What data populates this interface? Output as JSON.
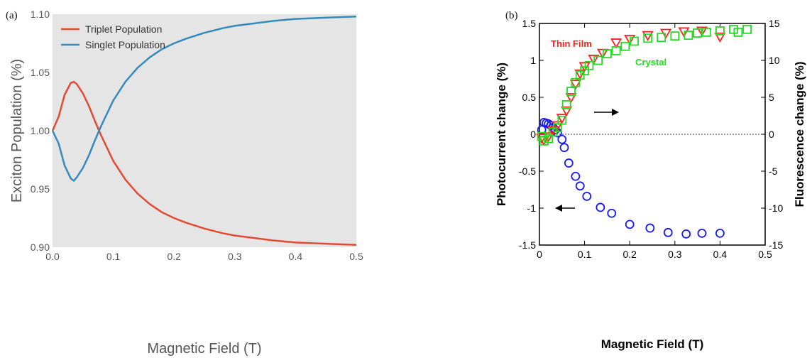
{
  "chart_data": [
    {
      "panel_label": "(a)",
      "type": "line",
      "xlabel": "Magnetic Field (T)",
      "ylabel": "Exciton Population (%)",
      "xlim": [
        0,
        0.5
      ],
      "ylim": [
        0.9,
        1.1
      ],
      "xticks": [
        "0.0",
        "0.1",
        "0.2",
        "0.3",
        "0.4",
        "0.5"
      ],
      "yticks": [
        "0.90",
        "0.95",
        "1.00",
        "1.05",
        "1.10"
      ],
      "grid": false,
      "background": "#e5e5e5",
      "legend_position": "top-left",
      "series": [
        {
          "name": "Triplet Population",
          "color": "#e24a33",
          "x": [
            0,
            0.01,
            0.02,
            0.03,
            0.035,
            0.04,
            0.05,
            0.06,
            0.07,
            0.08,
            0.09,
            0.1,
            0.12,
            0.14,
            0.16,
            0.18,
            0.2,
            0.22,
            0.25,
            0.28,
            0.3,
            0.33,
            0.36,
            0.4,
            0.45,
            0.5
          ],
          "y": [
            1.0,
            1.012,
            1.031,
            1.041,
            1.042,
            1.04,
            1.032,
            1.021,
            1.008,
            0.996,
            0.985,
            0.974,
            0.958,
            0.946,
            0.937,
            0.93,
            0.925,
            0.921,
            0.916,
            0.912,
            0.91,
            0.908,
            0.906,
            0.904,
            0.903,
            0.902
          ]
        },
        {
          "name": "Singlet Population",
          "color": "#348abd",
          "x": [
            0,
            0.01,
            0.02,
            0.03,
            0.035,
            0.04,
            0.05,
            0.06,
            0.07,
            0.08,
            0.09,
            0.1,
            0.12,
            0.14,
            0.16,
            0.18,
            0.2,
            0.22,
            0.25,
            0.28,
            0.3,
            0.33,
            0.36,
            0.4,
            0.45,
            0.5
          ],
          "y": [
            1.0,
            0.989,
            0.97,
            0.959,
            0.957,
            0.96,
            0.968,
            0.979,
            0.992,
            1.004,
            1.015,
            1.026,
            1.042,
            1.054,
            1.063,
            1.07,
            1.075,
            1.079,
            1.084,
            1.088,
            1.09,
            1.092,
            1.094,
            1.096,
            1.097,
            1.098
          ]
        }
      ]
    },
    {
      "panel_label": "(b)",
      "type": "scatter",
      "xlabel": "Magnetic Field (T)",
      "ylabel_left": "Photocurrent change (%)",
      "ylabel_right": "Fluorescence change (%)",
      "xlim": [
        0,
        0.5
      ],
      "ylim_left": [
        -1.5,
        1.5
      ],
      "ylim_right": [
        -15,
        15
      ],
      "xticks": [
        "0",
        "0.1",
        "0.2",
        "0.3",
        "0.4",
        "0.5"
      ],
      "yticks_left": [
        "-1.5",
        "-1",
        "-0.5",
        "0",
        "0.5",
        "1",
        "1.5"
      ],
      "yticks_right": [
        "-15",
        "-10",
        "-5",
        "0",
        "5",
        "10",
        "15"
      ],
      "zero_line": "dashed",
      "annotations": [
        {
          "text": "Thin Film",
          "color": "#ff2020"
        },
        {
          "text": "Crystal",
          "color": "#22dd22"
        }
      ],
      "arrows": [
        {
          "points_to": "right axis"
        },
        {
          "points_to": "left axis"
        }
      ],
      "series": [
        {
          "name": "Photocurrent",
          "axis": "left",
          "marker": "circle",
          "color": "#1a1aee",
          "x": [
            0.005,
            0.01,
            0.015,
            0.02,
            0.025,
            0.03,
            0.035,
            0.04,
            0.05,
            0.055,
            0.065,
            0.08,
            0.09,
            0.105,
            0.135,
            0.16,
            0.2,
            0.245,
            0.285,
            0.325,
            0.36,
            0.4
          ],
          "y": [
            0.06,
            0.16,
            0.15,
            0.14,
            0.12,
            0.09,
            0.06,
            0.02,
            -0.07,
            -0.18,
            -0.39,
            -0.57,
            -0.7,
            -0.84,
            -0.99,
            -1.07,
            -1.22,
            -1.27,
            -1.33,
            -1.35,
            -1.34,
            -1.34
          ]
        },
        {
          "name": "Thin Film",
          "axis": "right",
          "marker": "triangle-down",
          "color": "#ff2020",
          "x": [
            0.005,
            0.01,
            0.02,
            0.03,
            0.04,
            0.05,
            0.06,
            0.07,
            0.08,
            0.09,
            0.1,
            0.12,
            0.14,
            0.17,
            0.2,
            0.24,
            0.28,
            0.32,
            0.36,
            0.4
          ],
          "y": [
            -0.5,
            -0.8,
            -0.3,
            0.5,
            1.2,
            2.2,
            3.2,
            5.0,
            6.8,
            8.2,
            9.2,
            10.2,
            11.0,
            12.4,
            12.9,
            13.4,
            13.7,
            13.9,
            14.0,
            13.2
          ]
        },
        {
          "name": "Crystal",
          "axis": "right",
          "marker": "square",
          "color": "#22dd22",
          "x": [
            0.005,
            0.01,
            0.02,
            0.03,
            0.04,
            0.05,
            0.06,
            0.07,
            0.08,
            0.09,
            0.1,
            0.11,
            0.13,
            0.15,
            0.17,
            0.19,
            0.21,
            0.24,
            0.27,
            0.3,
            0.33,
            0.35,
            0.37,
            0.4,
            0.43,
            0.44,
            0.46
          ],
          "y": [
            -0.3,
            -0.9,
            -0.6,
            0.3,
            0.9,
            1.9,
            4.0,
            5.8,
            7.0,
            8.0,
            8.6,
            9.3,
            10.0,
            10.9,
            11.3,
            11.9,
            12.6,
            13.0,
            13.1,
            13.3,
            13.4,
            13.7,
            13.8,
            14.0,
            14.2,
            13.8,
            14.2
          ]
        }
      ]
    }
  ]
}
